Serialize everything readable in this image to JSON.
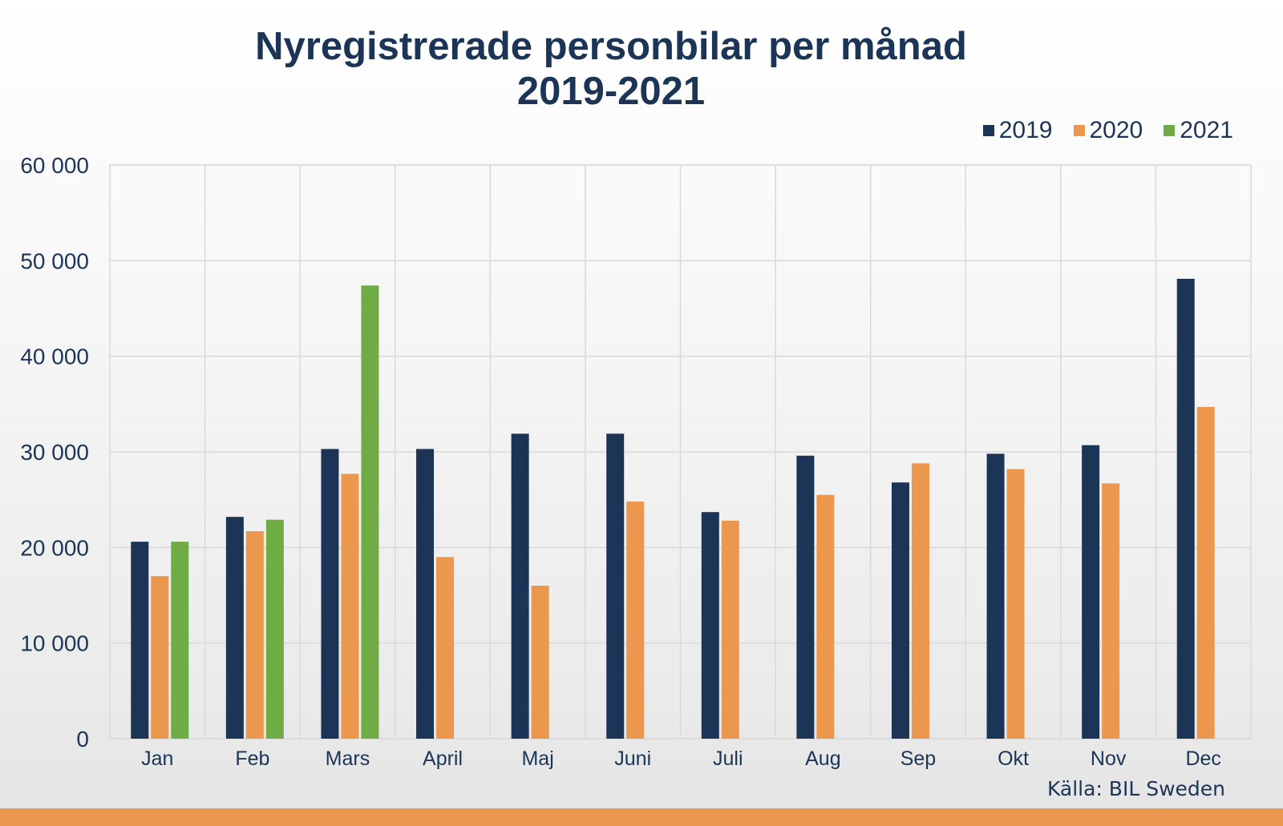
{
  "chart_data": {
    "type": "bar",
    "title": "Nyregistrerade personbilar per månad",
    "subtitle": "2019-2021",
    "categories": [
      "Jan",
      "Feb",
      "Mars",
      "April",
      "Maj",
      "Juni",
      "Juli",
      "Aug",
      "Sep",
      "Okt",
      "Nov",
      "Dec"
    ],
    "series": [
      {
        "name": "2019",
        "color": "#1c3557",
        "values": [
          20600,
          23200,
          30300,
          30300,
          31900,
          31900,
          23700,
          29600,
          26800,
          29800,
          30700,
          48100
        ]
      },
      {
        "name": "2020",
        "color": "#eb984e",
        "values": [
          17000,
          21700,
          27700,
          19000,
          16000,
          24800,
          22800,
          25500,
          28800,
          28200,
          26700,
          34700
        ]
      },
      {
        "name": "2021",
        "color": "#6fac46",
        "values": [
          20600,
          22900,
          47400,
          null,
          null,
          null,
          null,
          null,
          null,
          null,
          null,
          null
        ]
      }
    ],
    "yticks": [
      "0",
      "10 000",
      "20 000",
      "30 000",
      "40 000",
      "50 000",
      "60 000"
    ],
    "ylim": [
      0,
      60000
    ],
    "ytick_step": 10000,
    "grid": true,
    "legend_position": "top-right",
    "xlabel": "",
    "ylabel": ""
  },
  "source": "Källa: BIL Sweden",
  "colors": {
    "title": "#1c3557",
    "gridline": "#d9d9d9",
    "bottom_bar": "#eb984e"
  }
}
